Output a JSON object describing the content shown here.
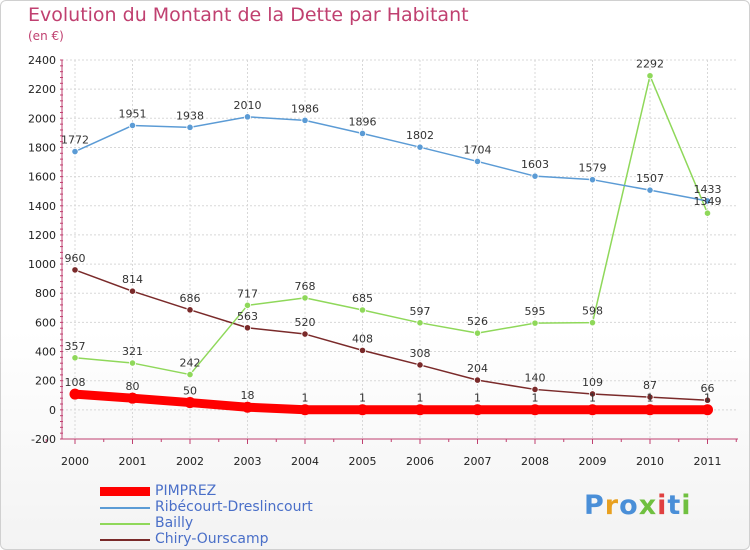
{
  "header": {
    "title": "Evolution du Montant de la Dette par Habitant",
    "subtitle": "(en €)"
  },
  "logo": {
    "text": "Proxiti",
    "colors": [
      "#4a8fd8",
      "#e8a020",
      "#4a8fd8",
      "#70c040",
      "#e04040",
      "#4a8fd8",
      "#70c040"
    ]
  },
  "colors": {
    "title": "#c04070",
    "axis_line": "#c04070",
    "grid": "#d8d8d8",
    "legend_text": "#4a6fc8"
  },
  "chart_data": {
    "type": "line",
    "title": "Evolution du Montant de la Dette par Habitant",
    "subtitle": "(en €)",
    "x": [
      "2000",
      "2001",
      "2002",
      "2003",
      "2004",
      "2005",
      "2006",
      "2007",
      "2008",
      "2009",
      "2010",
      "2011"
    ],
    "ylim": [
      -200,
      2400
    ],
    "yticks": [
      -200,
      0,
      200,
      400,
      600,
      800,
      1000,
      1200,
      1400,
      1600,
      1800,
      2000,
      2200,
      2400
    ],
    "grid": true,
    "legend_position": "bottom-left",
    "series": [
      {
        "name": "PIMPREZ",
        "color": "#ff0000",
        "values": [
          108,
          80,
          50,
          18,
          1,
          1,
          1,
          1,
          1,
          1,
          1,
          1
        ]
      },
      {
        "name": "Ribécourt-Dreslincourt",
        "color": "#5b9bd5",
        "values": [
          1772,
          1951,
          1938,
          2010,
          1986,
          1896,
          1802,
          1704,
          1603,
          1579,
          1507,
          1433
        ]
      },
      {
        "name": "Bailly",
        "color": "#8fd85a",
        "values": [
          357,
          321,
          242,
          717,
          768,
          685,
          597,
          526,
          595,
          598,
          2292,
          1349
        ]
      },
      {
        "name": "Chiry-Ourscamp",
        "color": "#7a2a2a",
        "values": [
          960,
          814,
          686,
          563,
          520,
          408,
          308,
          204,
          140,
          109,
          87,
          66
        ]
      }
    ]
  }
}
